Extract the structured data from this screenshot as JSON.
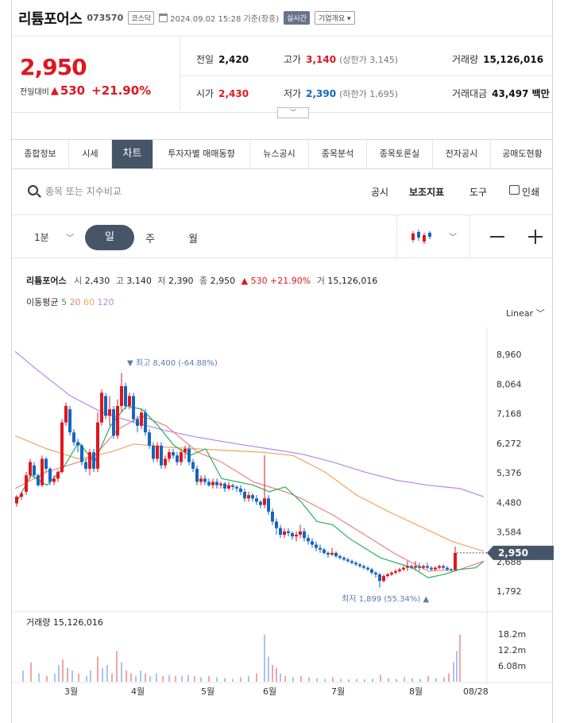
{
  "header": {
    "name": "리튬포어스",
    "code": "073570",
    "market": "코스닥",
    "datetime": "2024.09.02 15:28 기준(장중)",
    "live": "실시간",
    "info": "기업개요"
  },
  "quote": {
    "price": "2,950",
    "change_label": "전일대비",
    "change": "530",
    "change_pct": "+21.90%",
    "prev_label": "전일",
    "prev": "2,420",
    "high_label": "고가",
    "high": "3,140",
    "upper_limit": "(상한가 3,145)",
    "volume_label": "거래량",
    "volume": "15,126,016",
    "open_label": "시가",
    "open": "2,430",
    "low_label": "저가",
    "low": "2,390",
    "lower_limit": "(하한가 1,695)",
    "amount_label": "거래대금",
    "amount": "43,497 백만"
  },
  "tabs": [
    "종합정보",
    "시세",
    "차트",
    "투자자별 매매동향",
    "뉴스공시",
    "종목분석",
    "종목토론실",
    "전자공시",
    "공매도현황"
  ],
  "active_tab": "차트",
  "toolbar": {
    "search_placeholder": "종목 또는 지수비교",
    "disclosure": "공시",
    "indicator": "보조지표",
    "tools": "도구",
    "print": "인쇄"
  },
  "period": {
    "interval": "1분",
    "day": "일",
    "week": "주",
    "month": "월"
  },
  "legend": {
    "name": "리튬포어스",
    "open_lbl": "시",
    "open": "2,430",
    "high_lbl": "고",
    "high": "3,140",
    "low_lbl": "저",
    "low": "2,390",
    "close_lbl": "종",
    "close": "2,950",
    "change": "▲ 530 +21.90%",
    "vol_lbl": "거",
    "vol": "15,126,016"
  },
  "ma": {
    "label": "이동평균",
    "p5": "5",
    "p20": "20",
    "p60": "60",
    "p120": "120"
  },
  "scale_mode": "Linear",
  "colors": {
    "up": "#e0161e",
    "down": "#1565c0",
    "ma5": "#27ae60",
    "ma20": "#f08080",
    "ma60": "#f4a460",
    "ma120": "#b388eb",
    "accent": "#475569"
  },
  "chart_data": {
    "type": "candlestick",
    "y_ticks": [
      "8,960",
      "8,064",
      "7,168",
      "6,272",
      "5,376",
      "4,480",
      "3,584",
      "2,688",
      "1,792"
    ],
    "x_ticks": [
      "3월",
      "4월",
      "5월",
      "6월",
      "7월",
      "8월",
      "08/28"
    ],
    "current_price_label": "2,950",
    "high_marker": "▼ 최고 8,400 (-64.88%)",
    "low_marker": "최저 1,899 (55.34%) ▲",
    "volume_label": "거래량 15,126,016",
    "volume_ticks": [
      "18.2m",
      "12.2m",
      "6.08m"
    ],
    "ylim": [
      1600,
      9300
    ],
    "ma120": [
      [
        0,
        9050
      ],
      [
        30,
        8450
      ],
      [
        70,
        7700
      ],
      [
        110,
        7200
      ],
      [
        150,
        6900
      ],
      [
        190,
        6650
      ],
      [
        230,
        6450
      ],
      [
        280,
        6250
      ],
      [
        320,
        6100
      ],
      [
        360,
        5950
      ],
      [
        400,
        5700
      ],
      [
        440,
        5400
      ],
      [
        480,
        5150
      ],
      [
        520,
        5000
      ],
      [
        560,
        4900
      ],
      [
        590,
        4650
      ]
    ],
    "ma60": [
      [
        0,
        6500
      ],
      [
        40,
        6100
      ],
      [
        80,
        5800
      ],
      [
        120,
        6000
      ],
      [
        150,
        6250
      ],
      [
        190,
        6150
      ],
      [
        230,
        6100
      ],
      [
        270,
        6050
      ],
      [
        310,
        6000
      ],
      [
        350,
        5900
      ],
      [
        390,
        5400
      ],
      [
        430,
        4700
      ],
      [
        470,
        4200
      ],
      [
        510,
        3750
      ],
      [
        550,
        3300
      ],
      [
        590,
        3000
      ]
    ],
    "ma20": [
      [
        0,
        4900
      ],
      [
        40,
        5400
      ],
      [
        80,
        5700
      ],
      [
        100,
        5900
      ],
      [
        130,
        6700
      ],
      [
        160,
        7100
      ],
      [
        190,
        6800
      ],
      [
        230,
        6000
      ],
      [
        260,
        5700
      ],
      [
        300,
        5100
      ],
      [
        340,
        4800
      ],
      [
        360,
        4600
      ],
      [
        400,
        4100
      ],
      [
        440,
        3500
      ],
      [
        480,
        2900
      ],
      [
        520,
        2400
      ],
      [
        560,
        2450
      ],
      [
        590,
        2700
      ]
    ],
    "ma5": [
      [
        2,
        4500
      ],
      [
        20,
        5300
      ],
      [
        40,
        5000
      ],
      [
        60,
        5500
      ],
      [
        80,
        6300
      ],
      [
        100,
        5700
      ],
      [
        120,
        6800
      ],
      [
        140,
        7400
      ],
      [
        160,
        7300
      ],
      [
        180,
        6800
      ],
      [
        200,
        6200
      ],
      [
        220,
        5900
      ],
      [
        240,
        6100
      ],
      [
        260,
        5200
      ],
      [
        280,
        5100
      ],
      [
        300,
        5000
      ],
      [
        320,
        4800
      ],
      [
        340,
        4950
      ],
      [
        360,
        4500
      ],
      [
        380,
        3900
      ],
      [
        400,
        3800
      ],
      [
        420,
        3400
      ],
      [
        440,
        3100
      ],
      [
        460,
        2800
      ],
      [
        480,
        2650
      ],
      [
        500,
        2500
      ],
      [
        520,
        2200
      ],
      [
        540,
        2300
      ],
      [
        560,
        2450
      ],
      [
        580,
        2500
      ],
      [
        590,
        2700
      ]
    ],
    "candles": [
      [
        2,
        4450,
        4650,
        4350,
        4700,
        "u"
      ],
      [
        8,
        4650,
        4750,
        4550,
        4800,
        "u"
      ],
      [
        14,
        4800,
        5300,
        4700,
        5400,
        "u"
      ],
      [
        19,
        5300,
        5700,
        5200,
        5800,
        "u"
      ],
      [
        24,
        5600,
        5300,
        5250,
        5700,
        "d"
      ],
      [
        29,
        5300,
        5000,
        4950,
        5350,
        "d"
      ],
      [
        34,
        5000,
        5800,
        4950,
        5900,
        "u"
      ],
      [
        39,
        5800,
        5500,
        5400,
        5850,
        "d"
      ],
      [
        44,
        5500,
        5100,
        5000,
        5550,
        "d"
      ],
      [
        49,
        5100,
        5200,
        5000,
        5300,
        "u"
      ],
      [
        54,
        5200,
        5400,
        5100,
        5450,
        "u"
      ],
      [
        59,
        5400,
        6900,
        5350,
        7000,
        "u"
      ],
      [
        64,
        6900,
        7400,
        6800,
        7500,
        "u"
      ],
      [
        69,
        7300,
        6600,
        6500,
        7400,
        "d"
      ],
      [
        74,
        6600,
        6300,
        6200,
        6700,
        "d"
      ],
      [
        79,
        6300,
        6200,
        6000,
        6400,
        "d"
      ],
      [
        84,
        6200,
        5700,
        5600,
        6250,
        "d"
      ],
      [
        89,
        5700,
        5500,
        5400,
        5800,
        "d"
      ],
      [
        94,
        5500,
        6000,
        5300,
        6100,
        "u"
      ],
      [
        99,
        6000,
        5500,
        5400,
        6100,
        "d"
      ],
      [
        104,
        5500,
        6900,
        5400,
        7200,
        "u"
      ],
      [
        109,
        6900,
        7800,
        6800,
        7900,
        "u"
      ],
      [
        114,
        7700,
        7100,
        7000,
        7800,
        "d"
      ],
      [
        119,
        7100,
        7300,
        6800,
        7700,
        "u"
      ],
      [
        124,
        7300,
        6500,
        6400,
        7400,
        "d"
      ],
      [
        129,
        6500,
        7400,
        6400,
        7600,
        "u"
      ],
      [
        134,
        7400,
        8000,
        7200,
        8400,
        "u"
      ],
      [
        139,
        8000,
        7400,
        7300,
        8100,
        "d"
      ],
      [
        144,
        7400,
        7700,
        7300,
        7800,
        "u"
      ],
      [
        149,
        7700,
        7000,
        6900,
        7800,
        "d"
      ],
      [
        154,
        7000,
        6800,
        6600,
        7100,
        "d"
      ],
      [
        159,
        6800,
        7200,
        6700,
        7300,
        "u"
      ],
      [
        164,
        7200,
        6600,
        6500,
        7300,
        "d"
      ],
      [
        169,
        6600,
        6200,
        6100,
        6700,
        "d"
      ],
      [
        174,
        6200,
        5800,
        5700,
        6300,
        "d"
      ],
      [
        179,
        5800,
        6200,
        5700,
        6300,
        "u"
      ],
      [
        184,
        6200,
        5600,
        5500,
        6300,
        "d"
      ],
      [
        189,
        5600,
        5800,
        5500,
        5900,
        "u"
      ],
      [
        194,
        5800,
        6000,
        5700,
        6100,
        "u"
      ],
      [
        199,
        6000,
        5900,
        5800,
        6100,
        "d"
      ],
      [
        204,
        5900,
        5700,
        5600,
        6000,
        "d"
      ],
      [
        209,
        5700,
        6000,
        5600,
        6100,
        "u"
      ],
      [
        214,
        6000,
        6100,
        5800,
        6200,
        "u"
      ],
      [
        219,
        6100,
        5700,
        5600,
        6200,
        "d"
      ],
      [
        224,
        5700,
        5500,
        5400,
        5800,
        "d"
      ],
      [
        229,
        5500,
        5100,
        5000,
        5600,
        "d"
      ],
      [
        234,
        5100,
        5200,
        5000,
        5300,
        "u"
      ],
      [
        239,
        5200,
        5100,
        5000,
        5300,
        "d"
      ],
      [
        244,
        5100,
        5000,
        4950,
        5200,
        "d"
      ],
      [
        249,
        5000,
        5100,
        4900,
        5200,
        "u"
      ],
      [
        254,
        5100,
        5000,
        4900,
        5200,
        "d"
      ],
      [
        259,
        5000,
        5050,
        4900,
        5100,
        "u"
      ],
      [
        264,
        5050,
        4900,
        4800,
        5100,
        "d"
      ],
      [
        269,
        4900,
        5000,
        4850,
        5100,
        "u"
      ],
      [
        274,
        5000,
        4950,
        4850,
        5050,
        "d"
      ],
      [
        279,
        4950,
        4900,
        4800,
        5000,
        "d"
      ],
      [
        284,
        4900,
        4800,
        4700,
        5000,
        "d"
      ],
      [
        289,
        4800,
        4600,
        4500,
        4900,
        "d"
      ],
      [
        294,
        4600,
        4700,
        4500,
        4800,
        "u"
      ],
      [
        299,
        4700,
        4600,
        4500,
        4750,
        "d"
      ],
      [
        304,
        4600,
        4500,
        4400,
        4700,
        "d"
      ],
      [
        309,
        4500,
        4400,
        4300,
        4550,
        "d"
      ],
      [
        314,
        4400,
        4600,
        4300,
        5900,
        "u"
      ],
      [
        319,
        4600,
        4200,
        4100,
        4700,
        "d"
      ],
      [
        324,
        4200,
        3900,
        3800,
        4300,
        "d"
      ],
      [
        329,
        3900,
        3700,
        3500,
        4000,
        "d"
      ],
      [
        334,
        3700,
        3500,
        3400,
        3800,
        "d"
      ],
      [
        339,
        3500,
        3600,
        3400,
        3700,
        "u"
      ],
      [
        344,
        3600,
        3550,
        3450,
        3700,
        "d"
      ],
      [
        349,
        3550,
        3450,
        3350,
        3600,
        "d"
      ],
      [
        354,
        3450,
        3500,
        3300,
        3600,
        "u"
      ],
      [
        359,
        3500,
        3600,
        3400,
        3800,
        "u"
      ],
      [
        364,
        3600,
        3400,
        3300,
        3700,
        "d"
      ],
      [
        369,
        3400,
        3300,
        3200,
        3500,
        "d"
      ],
      [
        374,
        3300,
        3200,
        3100,
        3400,
        "d"
      ],
      [
        379,
        3200,
        3100,
        3000,
        3300,
        "d"
      ],
      [
        384,
        3100,
        3050,
        2950,
        3200,
        "d"
      ],
      [
        389,
        3050,
        2950,
        2900,
        3100,
        "d"
      ],
      [
        394,
        2950,
        2900,
        2800,
        3000,
        "d"
      ],
      [
        399,
        2900,
        2950,
        2850,
        3100,
        "u"
      ],
      [
        404,
        2950,
        2850,
        2800,
        3000,
        "d"
      ],
      [
        409,
        2850,
        2800,
        2750,
        2900,
        "d"
      ],
      [
        414,
        2800,
        2750,
        2700,
        2850,
        "d"
      ],
      [
        419,
        2750,
        2700,
        2650,
        2800,
        "d"
      ],
      [
        424,
        2700,
        2650,
        2600,
        2750,
        "d"
      ],
      [
        429,
        2650,
        2600,
        2550,
        2700,
        "d"
      ],
      [
        434,
        2600,
        2550,
        2500,
        2650,
        "d"
      ],
      [
        439,
        2550,
        2500,
        2450,
        2600,
        "d"
      ],
      [
        444,
        2500,
        2450,
        2400,
        2550,
        "d"
      ],
      [
        449,
        2450,
        2350,
        2300,
        2500,
        "d"
      ],
      [
        454,
        2350,
        2300,
        2200,
        2400,
        "d"
      ],
      [
        459,
        2300,
        2100,
        1899,
        2350,
        "d"
      ],
      [
        464,
        2100,
        2250,
        2050,
        2300,
        "u"
      ],
      [
        469,
        2250,
        2300,
        2200,
        2350,
        "u"
      ],
      [
        474,
        2300,
        2350,
        2250,
        2400,
        "u"
      ],
      [
        479,
        2350,
        2400,
        2300,
        2450,
        "u"
      ],
      [
        484,
        2400,
        2450,
        2350,
        2500,
        "u"
      ],
      [
        489,
        2450,
        2500,
        2400,
        2550,
        "u"
      ],
      [
        494,
        2500,
        2550,
        2400,
        2700,
        "u"
      ],
      [
        499,
        2550,
        2500,
        2450,
        2600,
        "d"
      ],
      [
        504,
        2500,
        2550,
        2450,
        2700,
        "u"
      ],
      [
        509,
        2550,
        2500,
        2400,
        2650,
        "d"
      ],
      [
        514,
        2500,
        2550,
        2450,
        2600,
        "u"
      ],
      [
        519,
        2550,
        2500,
        2450,
        2650,
        "d"
      ],
      [
        524,
        2500,
        2450,
        2400,
        2550,
        "d"
      ],
      [
        529,
        2450,
        2500,
        2400,
        2550,
        "u"
      ],
      [
        534,
        2500,
        2550,
        2450,
        2600,
        "u"
      ],
      [
        539,
        2550,
        2500,
        2450,
        2600,
        "d"
      ],
      [
        544,
        2500,
        2450,
        2400,
        2550,
        "d"
      ],
      [
        549,
        2450,
        2420,
        2380,
        2500,
        "d"
      ],
      [
        554,
        2430,
        2950,
        2390,
        3140,
        "u"
      ]
    ],
    "volumes": [
      [
        10,
        0.2
      ],
      [
        20,
        0.35
      ],
      [
        30,
        0.15
      ],
      [
        40,
        0.1
      ],
      [
        50,
        0.15
      ],
      [
        55,
        0.3
      ],
      [
        60,
        0.4
      ],
      [
        66,
        0.25
      ],
      [
        72,
        0.2
      ],
      [
        80,
        0.15
      ],
      [
        90,
        0.1
      ],
      [
        95,
        0.2
      ],
      [
        104,
        0.45
      ],
      [
        110,
        0.25
      ],
      [
        116,
        0.3
      ],
      [
        122,
        0.15
      ],
      [
        128,
        0.55
      ],
      [
        134,
        0.35
      ],
      [
        140,
        0.2
      ],
      [
        146,
        0.15
      ],
      [
        152,
        0.1
      ],
      [
        158,
        0.2
      ],
      [
        164,
        0.15
      ],
      [
        170,
        0.1
      ],
      [
        178,
        0.15
      ],
      [
        186,
        0.1
      ],
      [
        194,
        0.12
      ],
      [
        202,
        0.1
      ],
      [
        210,
        0.1
      ],
      [
        218,
        0.12
      ],
      [
        226,
        0.1
      ],
      [
        234,
        0.08
      ],
      [
        244,
        0.1
      ],
      [
        254,
        0.08
      ],
      [
        264,
        0.06
      ],
      [
        274,
        0.05
      ],
      [
        284,
        0.08
      ],
      [
        294,
        0.1
      ],
      [
        304,
        0.15
      ],
      [
        314,
        0.85
      ],
      [
        319,
        0.45
      ],
      [
        324,
        0.3
      ],
      [
        329,
        0.25
      ],
      [
        334,
        0.15
      ],
      [
        340,
        0.1
      ],
      [
        350,
        0.08
      ],
      [
        360,
        0.1
      ],
      [
        370,
        0.08
      ],
      [
        380,
        0.06
      ],
      [
        390,
        0.05
      ],
      [
        400,
        0.08
      ],
      [
        410,
        0.05
      ],
      [
        420,
        0.04
      ],
      [
        430,
        0.05
      ],
      [
        440,
        0.04
      ],
      [
        450,
        0.05
      ],
      [
        460,
        0.12
      ],
      [
        470,
        0.06
      ],
      [
        480,
        0.05
      ],
      [
        490,
        0.08
      ],
      [
        500,
        0.06
      ],
      [
        510,
        0.05
      ],
      [
        520,
        0.1
      ],
      [
        530,
        0.06
      ],
      [
        540,
        0.08
      ],
      [
        546,
        0.15
      ],
      [
        552,
        0.35
      ],
      [
        556,
        0.55
      ],
      [
        560,
        0.85
      ]
    ]
  }
}
